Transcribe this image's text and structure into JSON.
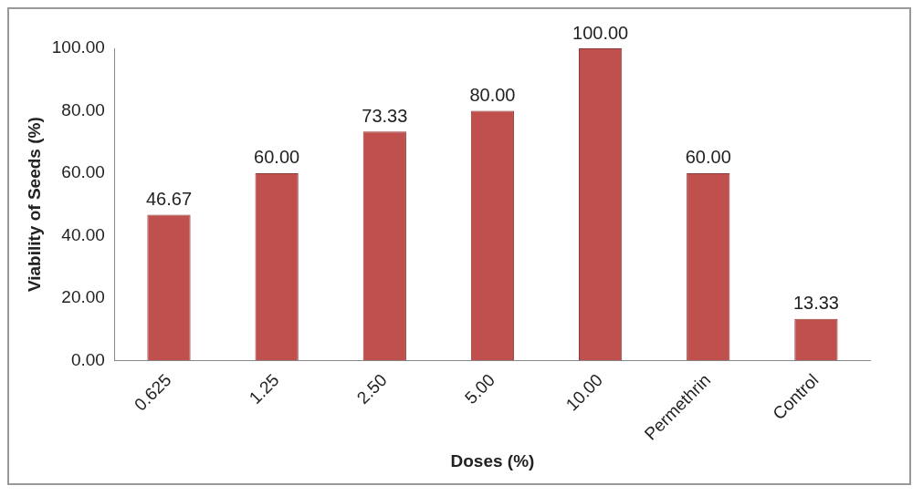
{
  "chart_data": {
    "type": "bar",
    "xlabel": "Doses (%)",
    "ylabel": "Viability of Seeds (%)",
    "categories": [
      "0.625",
      "1.25",
      "2.50",
      "5.00",
      "10.00",
      "Permethrin",
      "Control"
    ],
    "values": [
      46.67,
      60,
      73.33,
      80,
      100,
      60,
      13.33
    ],
    "value_labels": [
      "46.67",
      "60.00",
      "73.33",
      "80.00",
      "100.00",
      "60.00",
      "13.33"
    ],
    "color": "#c0504d",
    "ylim": [
      0,
      100
    ],
    "yticks": [
      {
        "value": 0,
        "label": "0.00"
      },
      {
        "value": 20,
        "label": "20.00"
      },
      {
        "value": 40,
        "label": "40.00"
      },
      {
        "value": 60,
        "label": "60.00"
      },
      {
        "value": 80,
        "label": "80.00"
      },
      {
        "value": 100,
        "label": "100.00"
      }
    ],
    "grid": false,
    "legend": false
  }
}
